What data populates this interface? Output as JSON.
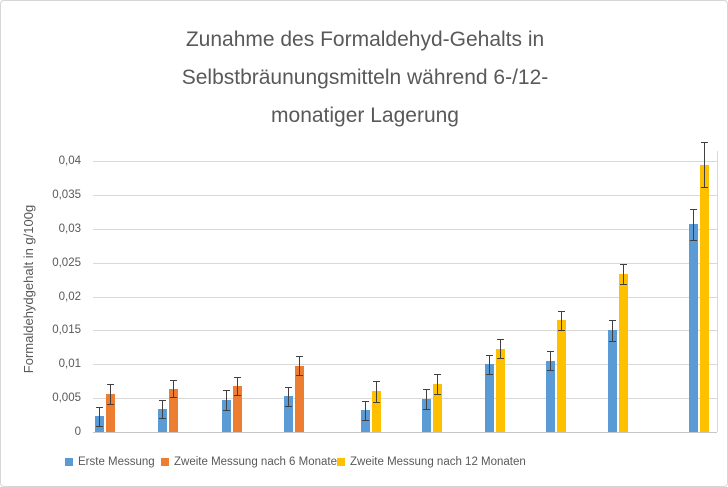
{
  "chart_data": {
    "type": "bar",
    "title_lines": [
      "Zunahme des Formaldehyd-Gehalts in",
      "Selbstbräunungsmitteln während 6-/12-",
      "monatiger Lagerung"
    ],
    "ylabel": "Formaldehydgehalt in g/100g",
    "xlabel": "",
    "y_axis": {
      "min": 0,
      "display_max": 0.043,
      "tick_step": 0.005,
      "tick_values": [
        0,
        0.005,
        0.01,
        0.015,
        0.02,
        0.025,
        0.03,
        0.035,
        0.04
      ],
      "tick_labels": [
        "0",
        "0,005",
        "0,01",
        "0,015",
        "0,02",
        "0,025",
        "0,03",
        "0,035",
        "0,04"
      ]
    },
    "grid": true,
    "legend_position": "bottom",
    "series": [
      {
        "id": "erste",
        "name": "Erste Messung",
        "color": "#5B9BD5"
      },
      {
        "id": "sechs",
        "name": "Zweite Messung nach 6 Monaten",
        "color": "#ED7D31"
      },
      {
        "id": "zwoelf",
        "name": "Zweite Messung nach 12 Monaten",
        "color": "#FFC000"
      }
    ],
    "error_bar_color": "#404040",
    "gridline_color": "#D9D9D9",
    "text_color": "#595959",
    "groups": [
      {
        "x_frac": 0.02,
        "bars": [
          {
            "series": 0,
            "value": 0.0023,
            "error": 0.0014
          },
          {
            "series": 1,
            "value": 0.0056,
            "error": 0.0015
          }
        ]
      },
      {
        "x_frac": 0.12,
        "bars": [
          {
            "series": 0,
            "value": 0.0034,
            "error": 0.0013
          },
          {
            "series": 1,
            "value": 0.0064,
            "error": 0.0013
          }
        ]
      },
      {
        "x_frac": 0.223,
        "bars": [
          {
            "series": 0,
            "value": 0.0047,
            "error": 0.0015
          },
          {
            "series": 1,
            "value": 0.0068,
            "error": 0.0014
          }
        ]
      },
      {
        "x_frac": 0.322,
        "bars": [
          {
            "series": 0,
            "value": 0.0053,
            "error": 0.0014
          },
          {
            "series": 1,
            "value": 0.0098,
            "error": 0.0014
          }
        ]
      },
      {
        "x_frac": 0.445,
        "bars": [
          {
            "series": 0,
            "value": 0.0032,
            "error": 0.0014
          },
          {
            "series": 2,
            "value": 0.006,
            "error": 0.0015
          }
        ]
      },
      {
        "x_frac": 0.543,
        "bars": [
          {
            "series": 0,
            "value": 0.0049,
            "error": 0.0015
          },
          {
            "series": 2,
            "value": 0.0071,
            "error": 0.0015
          }
        ]
      },
      {
        "x_frac": 0.644,
        "bars": [
          {
            "series": 0,
            "value": 0.01,
            "error": 0.0014
          },
          {
            "series": 2,
            "value": 0.0123,
            "error": 0.0014
          }
        ]
      },
      {
        "x_frac": 0.742,
        "bars": [
          {
            "series": 0,
            "value": 0.0105,
            "error": 0.0014
          },
          {
            "series": 2,
            "value": 0.0165,
            "error": 0.0014
          }
        ]
      },
      {
        "x_frac": 0.841,
        "bars": [
          {
            "series": 0,
            "value": 0.015,
            "error": 0.0015
          },
          {
            "series": 2,
            "value": 0.0233,
            "error": 0.0015
          }
        ]
      },
      {
        "x_frac": 0.971,
        "bars": [
          {
            "series": 0,
            "value": 0.0307,
            "error": 0.0023
          },
          {
            "series": 2,
            "value": 0.0395,
            "error": 0.0033
          }
        ]
      }
    ]
  }
}
